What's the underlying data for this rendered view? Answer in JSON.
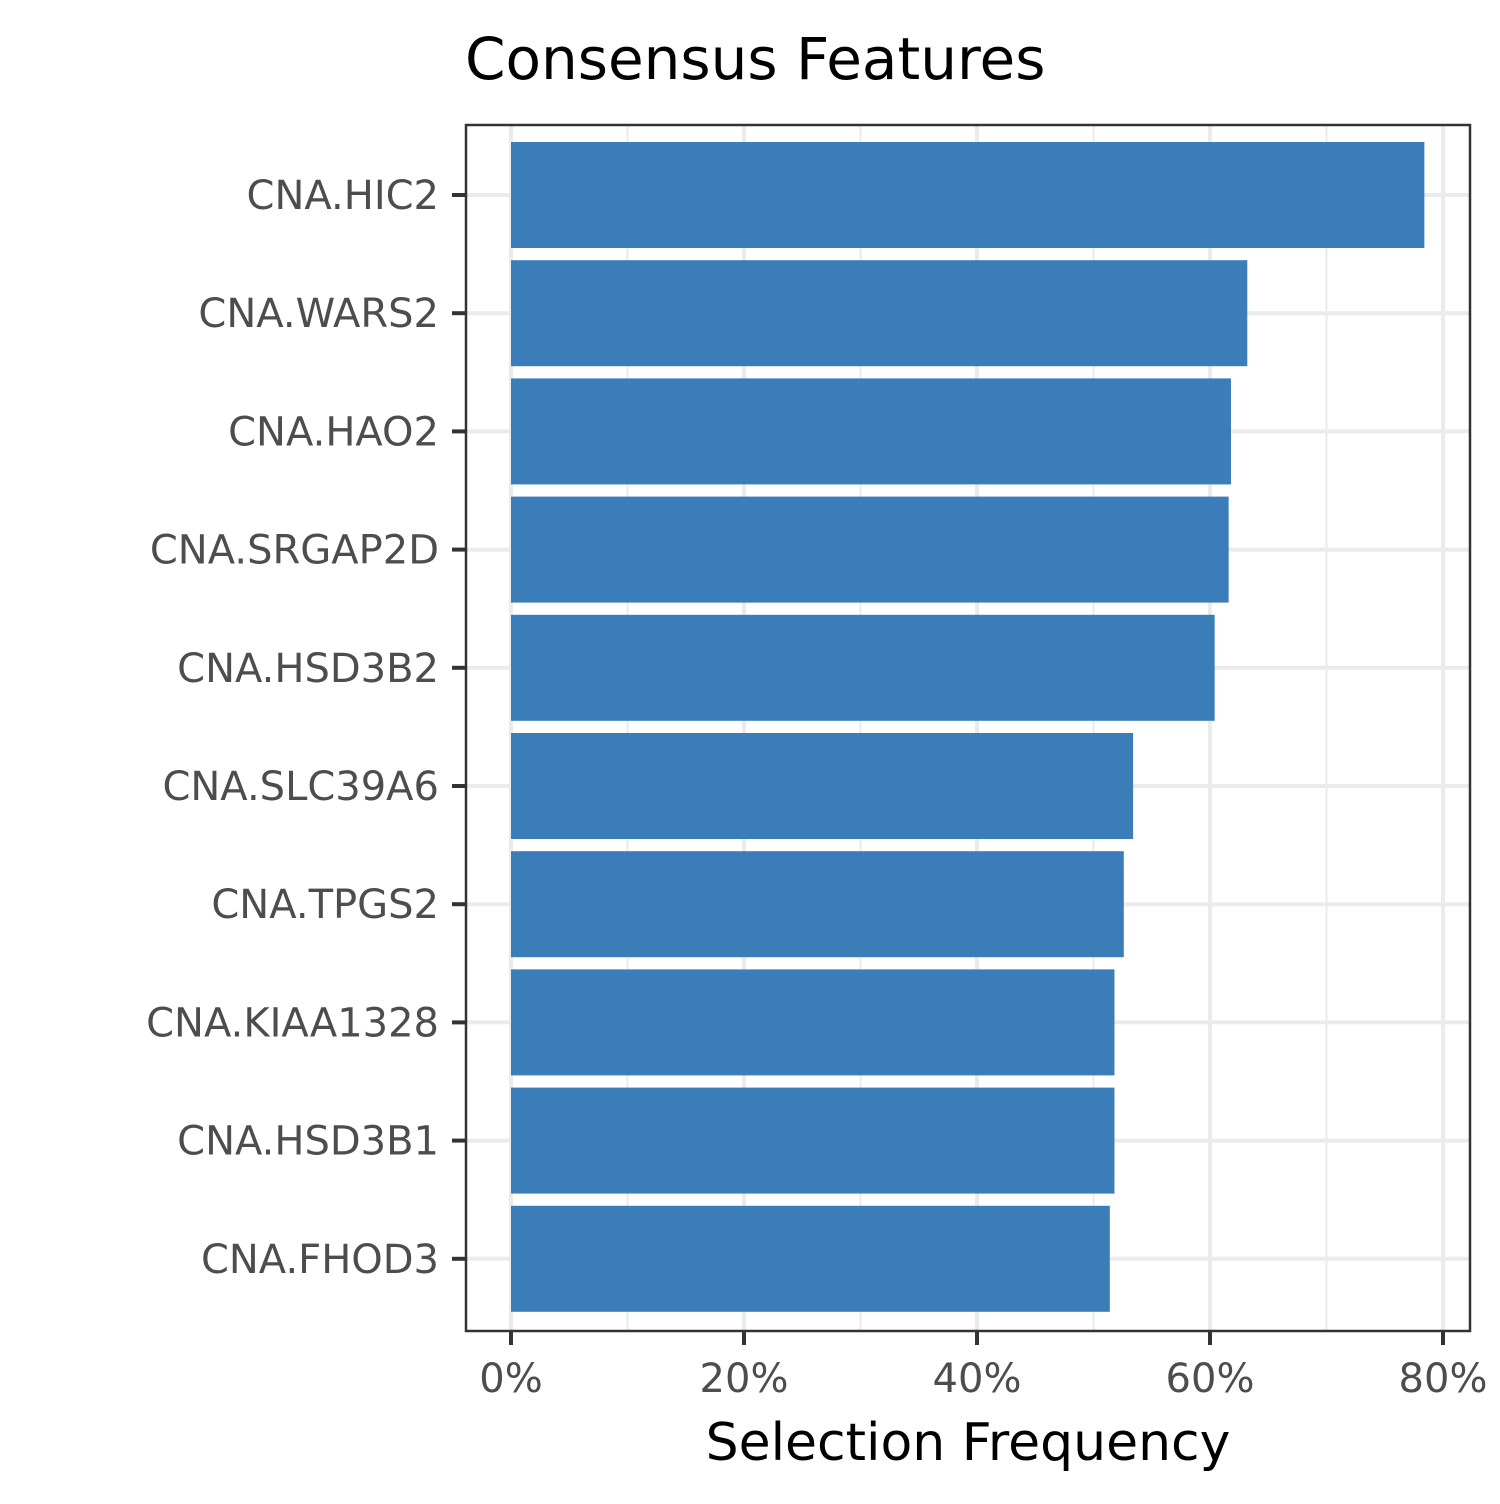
{
  "chart_data": {
    "type": "bar",
    "orientation": "horizontal",
    "title": "Consensus Features",
    "xlabel": "Selection Frequency",
    "ylabel": "",
    "xlim": [
      0,
      80
    ],
    "x_ticks": [
      0,
      20,
      40,
      60,
      80
    ],
    "x_tick_labels": [
      "0%",
      "20%",
      "40%",
      "60%",
      "80%"
    ],
    "categories": [
      "CNA.HIC2",
      "CNA.WARS2",
      "CNA.HAO2",
      "CNA.SRGAP2D",
      "CNA.HSD3B2",
      "CNA.SLC39A6",
      "CNA.TPGS2",
      "CNA.KIAA1328",
      "CNA.HSD3B1",
      "CNA.FHOD3"
    ],
    "values": [
      78.4,
      63.2,
      61.8,
      61.6,
      60.4,
      53.4,
      52.6,
      51.8,
      51.8,
      51.4
    ],
    "bar_color": "#3a7db8",
    "grid": true,
    "legend": "none"
  }
}
